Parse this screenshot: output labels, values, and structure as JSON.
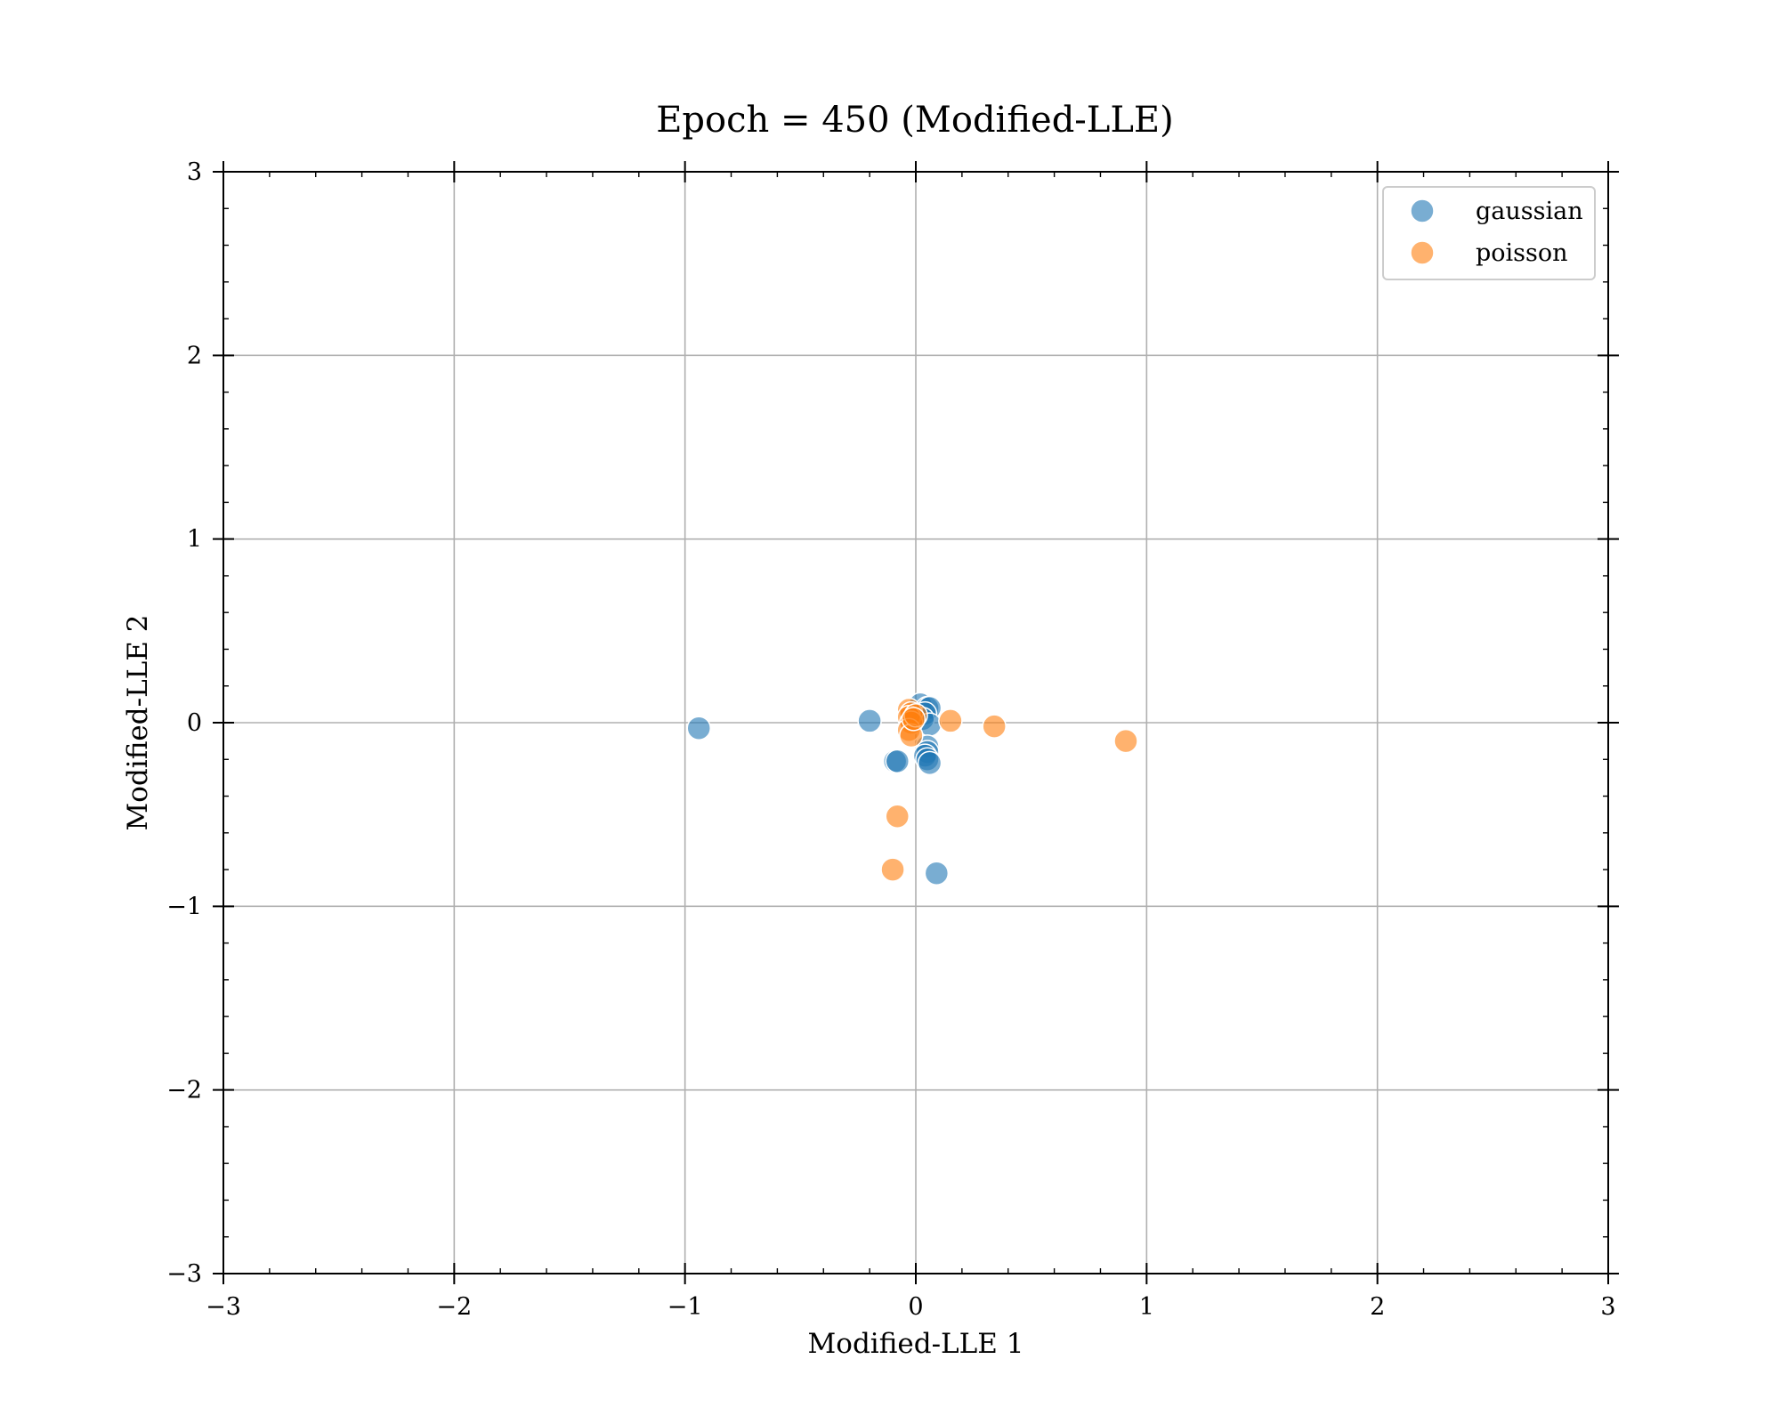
{
  "chart_data": {
    "type": "scatter",
    "title": "Epoch = 450 (Modified-LLE)",
    "xlabel": "Modified-LLE 1",
    "ylabel": "Modified-LLE 2",
    "xlim": [
      -3,
      3
    ],
    "ylim": [
      -3,
      3
    ],
    "xticks": [
      -3,
      -2,
      -1,
      0,
      1,
      2,
      3
    ],
    "yticks": [
      -3,
      -2,
      -1,
      0,
      1,
      2,
      3
    ],
    "xtick_labels": [
      "−3",
      "−2",
      "−1",
      "0",
      "1",
      "2",
      "3"
    ],
    "ytick_labels": [
      "−3",
      "−2",
      "−1",
      "0",
      "1",
      "2",
      "3"
    ],
    "grid": true,
    "legend_position": "top-right",
    "series": [
      {
        "name": "gaussian",
        "color": "#1f77b4",
        "points": [
          [
            -0.94,
            -0.03
          ],
          [
            -0.2,
            0.01
          ],
          [
            -0.09,
            -0.21
          ],
          [
            -0.08,
            -0.21
          ],
          [
            0.02,
            0.1
          ],
          [
            0.05,
            0.08
          ],
          [
            0.06,
            0.08
          ],
          [
            0.04,
            0.05
          ],
          [
            0.03,
            0.02
          ],
          [
            0.06,
            -0.01
          ],
          [
            0.05,
            -0.13
          ],
          [
            0.05,
            -0.16
          ],
          [
            0.04,
            -0.18
          ],
          [
            0.05,
            -0.2
          ],
          [
            0.06,
            -0.22
          ],
          [
            0.09,
            -0.82
          ]
        ]
      },
      {
        "name": "poisson",
        "color": "#ff7f0e",
        "points": [
          [
            -0.03,
            0.07
          ],
          [
            -0.02,
            0.05
          ],
          [
            -0.03,
            0.03
          ],
          [
            -0.02,
            0.0
          ],
          [
            -0.03,
            -0.04
          ],
          [
            -0.02,
            -0.07
          ],
          [
            0.0,
            0.04
          ],
          [
            -0.01,
            0.02
          ],
          [
            0.15,
            0.01
          ],
          [
            0.34,
            -0.02
          ],
          [
            0.91,
            -0.1
          ],
          [
            -0.08,
            -0.51
          ],
          [
            -0.1,
            -0.8
          ]
        ]
      }
    ]
  }
}
